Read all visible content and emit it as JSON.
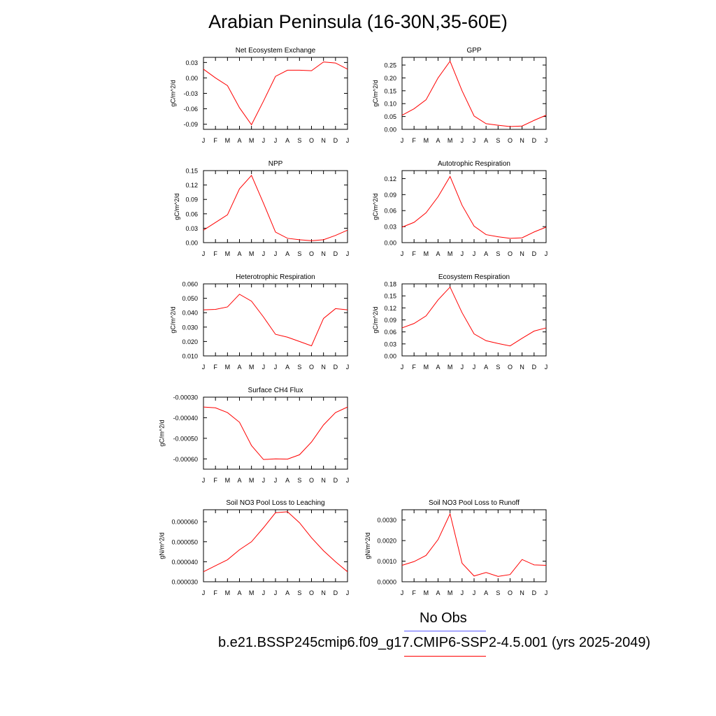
{
  "figure_title": "Arabian Peninsula (16-30N,35-60E)",
  "legend": {
    "obs_label": "No Obs",
    "obs_color": "#5b5bff",
    "model_label": "b.e21.BSSP245cmip6.f09_g17.CMIP6-SSP2-4.5.001 (yrs 2025-2049)",
    "model_color": "#ff0000"
  },
  "line_color": "#ff0000",
  "chart_data": [
    {
      "type": "line",
      "title": "Net Ecosystem Exchange",
      "ylabel": "gC/m^2/d",
      "categories": [
        "J",
        "F",
        "M",
        "A",
        "M",
        "J",
        "J",
        "A",
        "S",
        "O",
        "N",
        "D",
        "J"
      ],
      "ylim": [
        -0.1,
        0.04
      ],
      "yticks": [
        "0.03",
        "0.00",
        "-0.03",
        "-0.06",
        "-0.09"
      ],
      "ytick_values": [
        0.03,
        0.0,
        -0.03,
        -0.06,
        -0.09
      ],
      "values": [
        0.017,
        0.0,
        -0.015,
        -0.058,
        -0.091,
        -0.045,
        0.003,
        0.015,
        0.015,
        0.014,
        0.031,
        0.029,
        0.017
      ]
    },
    {
      "type": "line",
      "title": "GPP",
      "ylabel": "gC/m^2/d",
      "categories": [
        "J",
        "F",
        "M",
        "A",
        "M",
        "J",
        "J",
        "A",
        "S",
        "O",
        "N",
        "D",
        "J"
      ],
      "ylim": [
        0.0,
        0.28
      ],
      "yticks": [
        "0.25",
        "0.20",
        "0.15",
        "0.10",
        "0.05",
        "0.00"
      ],
      "ytick_values": [
        0.25,
        0.2,
        0.15,
        0.1,
        0.05,
        0.0
      ],
      "values": [
        0.055,
        0.08,
        0.115,
        0.2,
        0.265,
        0.15,
        0.052,
        0.022,
        0.016,
        0.011,
        0.013,
        0.035,
        0.055
      ]
    },
    {
      "type": "line",
      "title": "NPP",
      "ylabel": "gC/m^2/d",
      "categories": [
        "J",
        "F",
        "M",
        "A",
        "M",
        "J",
        "J",
        "A",
        "S",
        "O",
        "N",
        "D",
        "J"
      ],
      "ylim": [
        0.0,
        0.15
      ],
      "yticks": [
        "0.15",
        "0.12",
        "0.09",
        "0.06",
        "0.03",
        "0.00"
      ],
      "ytick_values": [
        0.15,
        0.12,
        0.09,
        0.06,
        0.03,
        0.0
      ],
      "values": [
        0.026,
        0.042,
        0.058,
        0.112,
        0.14,
        0.082,
        0.022,
        0.009,
        0.006,
        0.004,
        0.006,
        0.015,
        0.026
      ]
    },
    {
      "type": "line",
      "title": "Autotrophic Respiration",
      "ylabel": "gC/m^2/d",
      "categories": [
        "J",
        "F",
        "M",
        "A",
        "M",
        "J",
        "J",
        "A",
        "S",
        "O",
        "N",
        "D",
        "J"
      ],
      "ylim": [
        0.0,
        0.135
      ],
      "yticks": [
        "0.12",
        "0.09",
        "0.06",
        "0.03",
        "0.00"
      ],
      "ytick_values": [
        0.12,
        0.09,
        0.06,
        0.03,
        0.0
      ],
      "values": [
        0.029,
        0.038,
        0.056,
        0.086,
        0.124,
        0.07,
        0.031,
        0.015,
        0.011,
        0.008,
        0.009,
        0.02,
        0.029
      ]
    },
    {
      "type": "line",
      "title": "Heterotrophic Respiration",
      "ylabel": "gC/m^2/d",
      "categories": [
        "J",
        "F",
        "M",
        "A",
        "M",
        "J",
        "J",
        "A",
        "S",
        "O",
        "N",
        "D",
        "J"
      ],
      "ylim": [
        0.01,
        0.06
      ],
      "yticks": [
        "0.060",
        "0.050",
        "0.040",
        "0.030",
        "0.020",
        "0.010"
      ],
      "ytick_values": [
        0.06,
        0.05,
        0.04,
        0.03,
        0.02,
        0.01
      ],
      "values": [
        0.042,
        0.0423,
        0.044,
        0.0528,
        0.048,
        0.037,
        0.025,
        0.023,
        0.02,
        0.017,
        0.036,
        0.0428,
        0.042
      ]
    },
    {
      "type": "line",
      "title": "Ecosystem Respiration",
      "ylabel": "gC/m^2/d",
      "categories": [
        "J",
        "F",
        "M",
        "A",
        "M",
        "J",
        "J",
        "A",
        "S",
        "O",
        "N",
        "D",
        "J"
      ],
      "ylim": [
        0.0,
        0.18
      ],
      "yticks": [
        "0.18",
        "0.15",
        "0.12",
        "0.09",
        "0.06",
        "0.03",
        "0.00"
      ],
      "ytick_values": [
        0.18,
        0.15,
        0.12,
        0.09,
        0.06,
        0.03,
        0.0
      ],
      "values": [
        0.07,
        0.081,
        0.1,
        0.14,
        0.172,
        0.108,
        0.055,
        0.038,
        0.031,
        0.025,
        0.044,
        0.062,
        0.07
      ]
    },
    {
      "type": "line",
      "title": "Surface CH4 Flux",
      "ylabel": "gC/m^2/d",
      "categories": [
        "J",
        "F",
        "M",
        "A",
        "M",
        "J",
        "J",
        "A",
        "S",
        "O",
        "N",
        "D",
        "J"
      ],
      "ylim": [
        -0.00065,
        -0.0003
      ],
      "yticks": [
        "-0.00030",
        "-0.00040",
        "-0.00050",
        "-0.00060"
      ],
      "ytick_values": [
        -0.0003,
        -0.0004,
        -0.0005,
        -0.0006
      ],
      "values": [
        -0.000348,
        -0.000352,
        -0.000375,
        -0.000422,
        -0.000535,
        -0.000603,
        -0.0006,
        -0.000601,
        -0.00058,
        -0.000518,
        -0.000435,
        -0.000375,
        -0.000348
      ]
    },
    {
      "type": "line",
      "title": "Soil NO3 Pool Loss to Leaching",
      "ylabel": "gN/m^2/d",
      "categories": [
        "J",
        "F",
        "M",
        "A",
        "M",
        "J",
        "J",
        "A",
        "S",
        "O",
        "N",
        "D",
        "J"
      ],
      "ylim": [
        3e-05,
        6.6e-05
      ],
      "yticks": [
        "0.000060",
        "0.000050",
        "0.000040",
        "0.000030"
      ],
      "ytick_values": [
        6e-05,
        5e-05,
        4e-05,
        3e-05
      ],
      "values": [
        3.5e-05,
        3.8e-05,
        4.1e-05,
        4.6e-05,
        5e-05,
        5.7e-05,
        6.45e-05,
        6.5e-05,
        5.95e-05,
        5.2e-05,
        4.55e-05,
        4e-05,
        3.5e-05
      ]
    },
    {
      "type": "line",
      "title": "Soil NO3 Pool Loss to Runoff",
      "ylabel": "gN/m^2/d",
      "categories": [
        "J",
        "F",
        "M",
        "A",
        "M",
        "J",
        "J",
        "A",
        "S",
        "O",
        "N",
        "D",
        "J"
      ],
      "ylim": [
        0.0,
        0.0035
      ],
      "yticks": [
        "0.0030",
        "0.0020",
        "0.0010",
        "0.0000"
      ],
      "ytick_values": [
        0.003,
        0.002,
        0.001,
        0.0
      ],
      "values": [
        0.0008,
        0.00098,
        0.00128,
        0.00205,
        0.0033,
        0.0009,
        0.00028,
        0.00045,
        0.00026,
        0.00035,
        0.00108,
        0.00082,
        0.0008
      ]
    }
  ]
}
